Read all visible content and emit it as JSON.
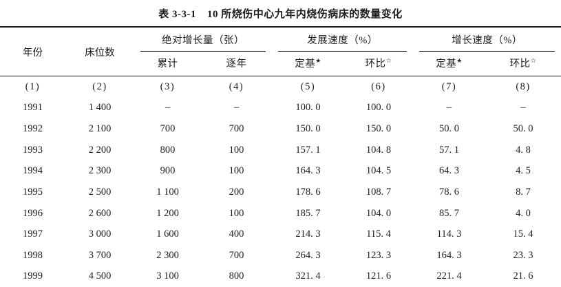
{
  "page": {
    "background": "#ffffff",
    "text_color": "#1d1d1d",
    "rule_color": "#161616"
  },
  "title": {
    "label": "表 3-3-1",
    "text": "10 所烧伤中心九年内烧伤病床的数量变化"
  },
  "header": {
    "year": "年份",
    "beds": "床位数",
    "groups": {
      "abs_growth": "绝对增长量（张）",
      "dev_speed": "发展速度（%）",
      "growth_speed": "增长速度（%）"
    },
    "sub": {
      "cumulative": "累计",
      "yearly": "逐年",
      "fixed_base": "定基",
      "fixed_base_mark": "★",
      "chain": "环比",
      "chain_mark": "☆"
    },
    "col_numbers": [
      "(1)",
      "(2)",
      "(3)",
      "(4)",
      "(5)",
      "(6)",
      "(7)",
      "(8)"
    ]
  },
  "rows": [
    [
      "1991",
      "1 400",
      "–",
      "–",
      "100. 0",
      "100. 0",
      "–",
      "–"
    ],
    [
      "1992",
      "2 100",
      "700",
      "700",
      "150. 0",
      "150. 0",
      "50. 0",
      "50. 0"
    ],
    [
      "1993",
      "2 200",
      "800",
      "100",
      "157. 1",
      "104. 8",
      "57. 1",
      "4. 8"
    ],
    [
      "1994",
      "2 300",
      "900",
      "100",
      "164. 3",
      "104. 5",
      "64. 3",
      "4. 5"
    ],
    [
      "1995",
      "2 500",
      "1 100",
      "200",
      "178. 6",
      "108. 7",
      "78. 6",
      "8. 7"
    ],
    [
      "1996",
      "2 600",
      "1 200",
      "100",
      "185. 7",
      "104. 0",
      "85. 7",
      "4. 0"
    ],
    [
      "1997",
      "3 000",
      "1 600",
      "400",
      "214. 3",
      "115. 4",
      "114. 3",
      "15. 4"
    ],
    [
      "1998",
      "3 700",
      "2 300",
      "700",
      "264. 3",
      "123. 3",
      "164. 3",
      "23. 3"
    ],
    [
      "1999",
      "4 500",
      "3 100",
      "800",
      "321. 4",
      "121. 6",
      "221. 4",
      "21. 6"
    ]
  ]
}
